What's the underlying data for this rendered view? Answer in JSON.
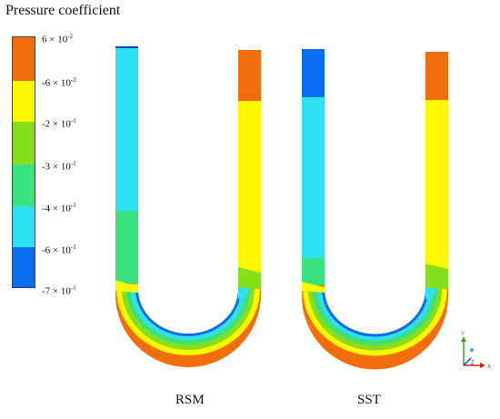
{
  "legend": {
    "title": "Pressure coefficient",
    "bands": [
      {
        "color": "#f26d0e"
      },
      {
        "color": "#fdf700"
      },
      {
        "color": "#86df1c"
      },
      {
        "color": "#39e27f"
      },
      {
        "color": "#2ee1f2"
      },
      {
        "color": "#0a6cf0"
      }
    ],
    "ticks": [
      {
        "mantissa": "6 × 10",
        "exp": "-2"
      },
      {
        "mantissa": "-6 × 10",
        "exp": "-2"
      },
      {
        "mantissa": "-2 × 10",
        "exp": "-1"
      },
      {
        "mantissa": "-3 × 10",
        "exp": "-1"
      },
      {
        "mantissa": "-4 × 10",
        "exp": "-1"
      },
      {
        "mantissa": "-6 × 10",
        "exp": "-1"
      },
      {
        "mantissa": "-7 × 10",
        "exp": "-1"
      }
    ]
  },
  "models": [
    {
      "label": "RSM"
    },
    {
      "label": "SST"
    }
  ],
  "axes": {
    "y": "Y",
    "x": "X",
    "z": "Z"
  },
  "colors": {
    "orange": "#f26d0e",
    "yellow": "#fdf700",
    "green": "#86df1c",
    "mint": "#39e27f",
    "cyan": "#2ee1f2",
    "blue": "#0a6cf0"
  }
}
